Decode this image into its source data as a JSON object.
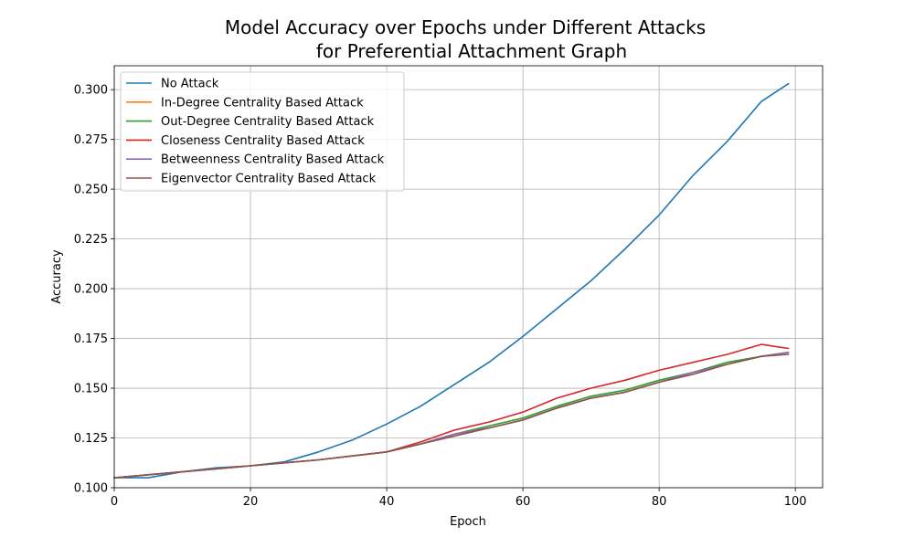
{
  "chart_data": {
    "type": "line",
    "title": "Model Accuracy over Epochs under Different Attacks",
    "subtitle": "for Preferential Attachment Graph",
    "xlabel": "Epoch",
    "ylabel": "Accuracy",
    "xlim": [
      0,
      104
    ],
    "ylim": [
      0.1,
      0.312
    ],
    "xticks": [
      0,
      20,
      40,
      60,
      80,
      100
    ],
    "yticks": [
      0.1,
      0.125,
      0.15,
      0.175,
      0.2,
      0.225,
      0.25,
      0.275,
      0.3
    ],
    "ytick_labels": [
      "0.100",
      "0.125",
      "0.150",
      "0.175",
      "0.200",
      "0.225",
      "0.250",
      "0.275",
      "0.300"
    ],
    "grid": true,
    "legend_position": "top-left",
    "series": [
      {
        "name": "No Attack",
        "color": "#1f77b4",
        "points": [
          [
            0,
            0.105
          ],
          [
            5,
            0.105
          ],
          [
            10,
            0.108
          ],
          [
            15,
            0.11
          ],
          [
            20,
            0.111
          ],
          [
            25,
            0.113
          ],
          [
            30,
            0.118
          ],
          [
            35,
            0.124
          ],
          [
            40,
            0.132
          ],
          [
            45,
            0.141
          ],
          [
            50,
            0.152
          ],
          [
            55,
            0.163
          ],
          [
            60,
            0.176
          ],
          [
            65,
            0.19
          ],
          [
            70,
            0.204
          ],
          [
            75,
            0.22
          ],
          [
            80,
            0.237
          ],
          [
            85,
            0.257
          ],
          [
            90,
            0.274
          ],
          [
            95,
            0.294
          ],
          [
            99,
            0.303
          ]
        ]
      },
      {
        "name": "In-Degree Centrality Based Attack",
        "color": "#ff7f0e",
        "points": [
          [
            0,
            0.105
          ],
          [
            10,
            0.108
          ],
          [
            20,
            0.111
          ],
          [
            30,
            0.114
          ],
          [
            40,
            0.118
          ],
          [
            45,
            0.122
          ],
          [
            50,
            0.127
          ],
          [
            55,
            0.13
          ],
          [
            60,
            0.134
          ],
          [
            65,
            0.14
          ],
          [
            70,
            0.145
          ],
          [
            75,
            0.148
          ],
          [
            80,
            0.153
          ],
          [
            85,
            0.158
          ],
          [
            90,
            0.162
          ],
          [
            95,
            0.166
          ],
          [
            99,
            0.168
          ]
        ]
      },
      {
        "name": "Out-Degree Centrality Based Attack",
        "color": "#2ca02c",
        "points": [
          [
            0,
            0.105
          ],
          [
            10,
            0.108
          ],
          [
            20,
            0.111
          ],
          [
            30,
            0.114
          ],
          [
            40,
            0.118
          ],
          [
            45,
            0.122
          ],
          [
            50,
            0.127
          ],
          [
            55,
            0.131
          ],
          [
            60,
            0.135
          ],
          [
            65,
            0.141
          ],
          [
            70,
            0.146
          ],
          [
            75,
            0.149
          ],
          [
            80,
            0.154
          ],
          [
            85,
            0.158
          ],
          [
            90,
            0.163
          ],
          [
            95,
            0.166
          ],
          [
            99,
            0.168
          ]
        ]
      },
      {
        "name": "Closeness Centrality Based Attack",
        "color": "#d62728",
        "points": [
          [
            0,
            0.105
          ],
          [
            10,
            0.108
          ],
          [
            20,
            0.111
          ],
          [
            30,
            0.114
          ],
          [
            40,
            0.118
          ],
          [
            45,
            0.123
          ],
          [
            50,
            0.129
          ],
          [
            55,
            0.133
          ],
          [
            60,
            0.138
          ],
          [
            65,
            0.145
          ],
          [
            70,
            0.15
          ],
          [
            75,
            0.154
          ],
          [
            80,
            0.159
          ],
          [
            85,
            0.163
          ],
          [
            90,
            0.167
          ],
          [
            95,
            0.172
          ],
          [
            99,
            0.17
          ]
        ]
      },
      {
        "name": "Betweenness Centrality Based Attack",
        "color": "#9467bd",
        "points": [
          [
            0,
            0.105
          ],
          [
            10,
            0.108
          ],
          [
            20,
            0.111
          ],
          [
            30,
            0.114
          ],
          [
            40,
            0.118
          ],
          [
            45,
            0.122
          ],
          [
            50,
            0.127
          ],
          [
            55,
            0.13
          ],
          [
            60,
            0.134
          ],
          [
            65,
            0.14
          ],
          [
            70,
            0.145
          ],
          [
            75,
            0.148
          ],
          [
            80,
            0.153
          ],
          [
            85,
            0.158
          ],
          [
            90,
            0.162
          ],
          [
            95,
            0.166
          ],
          [
            99,
            0.168
          ]
        ]
      },
      {
        "name": "Eigenvector Centrality Based Attack",
        "color": "#8c564b",
        "points": [
          [
            0,
            0.105
          ],
          [
            10,
            0.108
          ],
          [
            20,
            0.111
          ],
          [
            30,
            0.114
          ],
          [
            40,
            0.118
          ],
          [
            45,
            0.122
          ],
          [
            50,
            0.126
          ],
          [
            55,
            0.13
          ],
          [
            60,
            0.134
          ],
          [
            65,
            0.14
          ],
          [
            70,
            0.145
          ],
          [
            75,
            0.148
          ],
          [
            80,
            0.153
          ],
          [
            85,
            0.157
          ],
          [
            90,
            0.162
          ],
          [
            95,
            0.166
          ],
          [
            99,
            0.167
          ]
        ]
      }
    ]
  }
}
